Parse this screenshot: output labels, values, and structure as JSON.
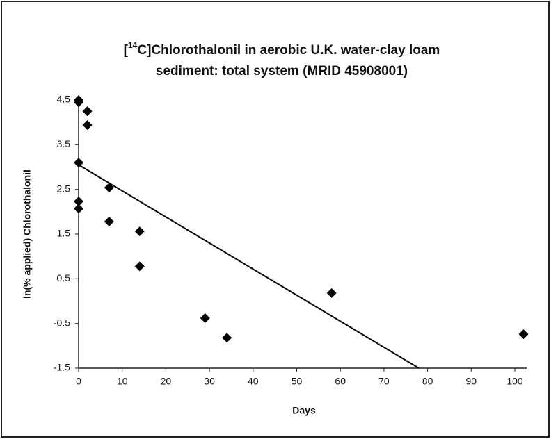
{
  "chart_data": {
    "type": "scatter",
    "title": [
      "[",
      "14",
      "C]Chlorothalonil in aerobic U.K. water-clay loam",
      "sediment: total system (MRID 45908001)"
    ],
    "x_label": "Days",
    "y_label": "ln(% applied) Chlorothalonil",
    "xlim": [
      0,
      100
    ],
    "xticks": [
      0,
      10,
      20,
      30,
      40,
      50,
      60,
      70,
      80,
      90,
      100
    ],
    "ylim": [
      -1.5,
      4.5
    ],
    "yticks": [
      -1.5,
      -0.5,
      0.5,
      1.5,
      2.5,
      3.5,
      4.5
    ],
    "series": [
      {
        "color": "#000000",
        "x": [
          0,
          0,
          2,
          2,
          0,
          0,
          0,
          7,
          7,
          14,
          14,
          29,
          34,
          58,
          102
        ],
        "values": [
          4.5,
          4.45,
          4.25,
          3.94,
          3.1,
          2.23,
          2.07,
          2.54,
          1.78,
          1.56,
          0.78,
          -0.38,
          -0.82,
          0.18,
          -0.74
        ]
      },
      {
        "color": "#000000",
        "style": "line",
        "x": [
          0,
          78
        ],
        "values": [
          3.05,
          -1.5
        ]
      }
    ]
  }
}
